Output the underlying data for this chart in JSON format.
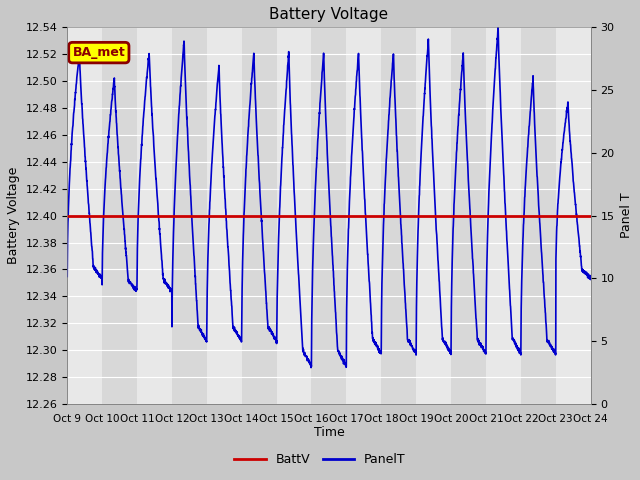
{
  "title": "Battery Voltage",
  "ylabel_left": "Battery Voltage",
  "ylabel_right": "Panel T",
  "xlabel": "Time",
  "ylim_left": [
    12.26,
    12.54
  ],
  "ylim_right": [
    0,
    30
  ],
  "yticks_left": [
    12.26,
    12.28,
    12.3,
    12.32,
    12.34,
    12.36,
    12.38,
    12.4,
    12.42,
    12.44,
    12.46,
    12.48,
    12.5,
    12.52,
    12.54
  ],
  "yticks_right": [
    0,
    5,
    10,
    15,
    20,
    25,
    30
  ],
  "xtick_labels": [
    "Oct 9",
    "Oct 10",
    "Oct 11",
    "Oct 12",
    "Oct 13",
    "Oct 14",
    "Oct 15",
    "Oct 16",
    "Oct 17",
    "Oct 18",
    "Oct 19",
    "Oct 20",
    "Oct 21",
    "Oct 22",
    "Oct 23",
    "Oct 24"
  ],
  "battv_value": 12.4,
  "battv_color": "#cc0000",
  "panelt_color": "#0000cc",
  "fig_bg_color": "#c8c8c8",
  "plot_bg_color": "#e0e0e0",
  "band_color_light": "#e8e8e8",
  "band_color_dark": "#d8d8d8",
  "annotation_text": "BA_met",
  "annotation_bg": "#ffff00",
  "annotation_border": "#8b0000",
  "legend_labels": [
    "BattV",
    "PanelT"
  ],
  "legend_colors": [
    "#cc0000",
    "#0000cc"
  ],
  "num_days": 15,
  "peaks_r": [
    28,
    26,
    28,
    29,
    27,
    28,
    28,
    28,
    28,
    28,
    29,
    28,
    30,
    26,
    24
  ],
  "troughs_r": [
    10,
    9,
    9,
    5,
    5,
    5,
    3,
    3,
    4,
    4,
    4,
    4,
    4,
    4,
    10
  ],
  "scale": 0.009333
}
